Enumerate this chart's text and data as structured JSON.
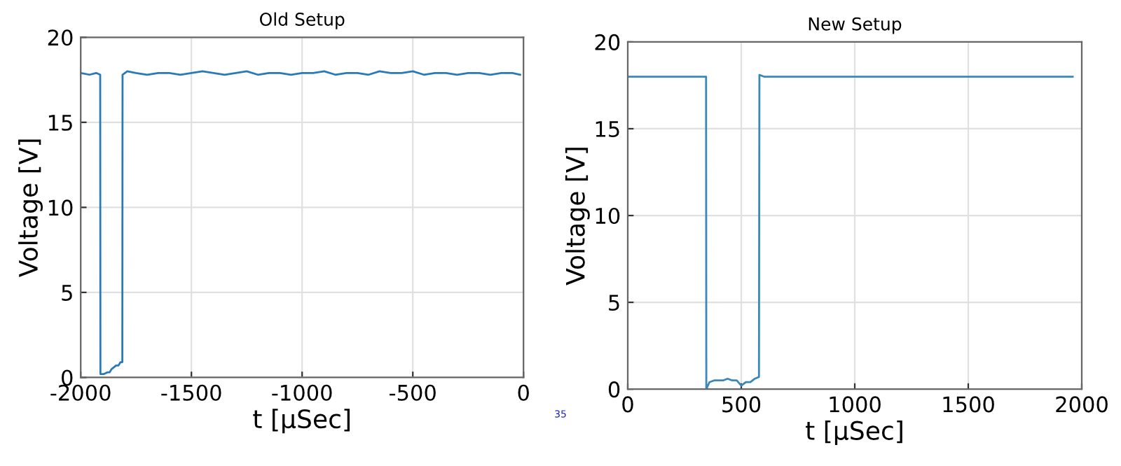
{
  "chart_data": [
    {
      "type": "line",
      "title": "Old Setup",
      "xlabel": "t [μSec]",
      "ylabel": "Voltage [V]",
      "xlim": [
        -2000,
        0
      ],
      "ylim": [
        0,
        20
      ],
      "xticks": [
        -2000,
        -1500,
        -1000,
        -500,
        0
      ],
      "yticks": [
        0,
        5,
        10,
        15,
        20
      ],
      "grid": true,
      "series": [
        {
          "color": "#2a7ab8",
          "x": [
            -2000,
            -1960,
            -1930,
            -1912,
            -1911,
            -1895,
            -1880,
            -1870,
            -1860,
            -1850,
            -1840,
            -1830,
            -1820,
            -1812,
            -1811,
            -1790,
            -1750,
            -1700,
            -1650,
            -1600,
            -1550,
            -1500,
            -1450,
            -1400,
            -1350,
            -1300,
            -1250,
            -1200,
            -1150,
            -1100,
            -1050,
            -1000,
            -950,
            -900,
            -850,
            -800,
            -750,
            -700,
            -650,
            -600,
            -550,
            -500,
            -450,
            -400,
            -350,
            -300,
            -250,
            -200,
            -150,
            -100,
            -50,
            -15
          ],
          "values": [
            17.9,
            17.8,
            17.9,
            17.8,
            0.2,
            0.2,
            0.3,
            0.3,
            0.5,
            0.6,
            0.7,
            0.7,
            0.9,
            0.9,
            17.8,
            18.0,
            17.9,
            17.8,
            17.9,
            17.9,
            17.8,
            17.9,
            18.0,
            17.9,
            17.8,
            17.9,
            18.0,
            17.8,
            17.9,
            17.9,
            17.8,
            17.9,
            17.9,
            18.0,
            17.8,
            17.9,
            17.9,
            17.8,
            18.0,
            17.9,
            17.9,
            18.0,
            17.8,
            17.9,
            17.9,
            17.8,
            17.9,
            17.9,
            17.8,
            17.9,
            17.9,
            17.8
          ]
        }
      ]
    },
    {
      "type": "line",
      "title": "New Setup",
      "xlabel": "t [μSec]",
      "ylabel": "Voltage [V]",
      "xlim": [
        0,
        2000
      ],
      "ylim": [
        0,
        20
      ],
      "xticks": [
        0,
        500,
        1000,
        1500,
        2000
      ],
      "yticks": [
        0,
        5,
        10,
        15,
        20
      ],
      "grid": true,
      "annotations": [
        "35"
      ],
      "series": [
        {
          "color": "#3a87b8",
          "x": [
            0,
            345,
            346,
            360,
            380,
            400,
            420,
            440,
            460,
            480,
            500,
            520,
            540,
            560,
            578,
            580,
            600,
            650,
            1000,
            1500,
            1960
          ],
          "values": [
            18.0,
            18.0,
            0.0,
            0.4,
            0.5,
            0.5,
            0.5,
            0.6,
            0.5,
            0.5,
            0.2,
            0.4,
            0.4,
            0.6,
            0.7,
            18.1,
            18.0,
            18.0,
            18.0,
            18.0,
            18.0
          ]
        }
      ]
    }
  ]
}
